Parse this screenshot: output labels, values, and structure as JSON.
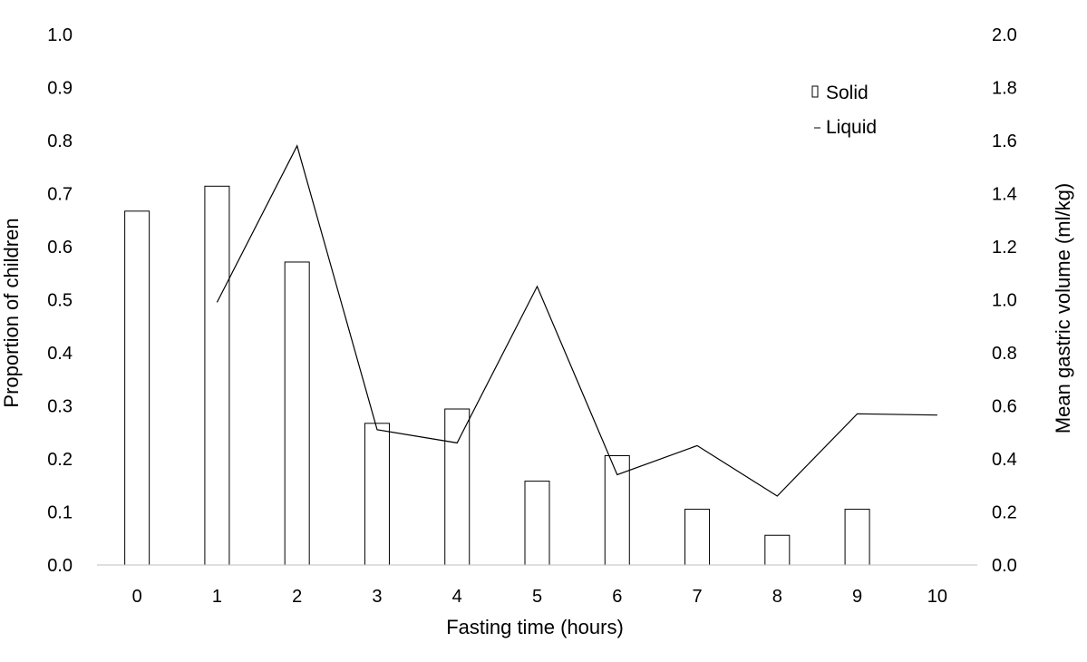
{
  "chart_data": {
    "type": "bar",
    "x": [
      0,
      1,
      2,
      3,
      4,
      5,
      6,
      7,
      8,
      9,
      10
    ],
    "x_tick_labels": [
      "0",
      "1",
      "2",
      "3",
      "4",
      "5",
      "6",
      "7",
      "8",
      "9",
      "10"
    ],
    "xlabel": "Fasting time (hours)",
    "ylabel": "Proportion of children",
    "y2label": "Mean gastric volume (ml/kg)",
    "ylim": [
      0,
      1.0
    ],
    "y2lim": [
      0,
      2.0
    ],
    "y_tick_labels": [
      "0.0",
      "0.1",
      "0.2",
      "0.3",
      "0.4",
      "0.5",
      "0.6",
      "0.7",
      "0.8",
      "0.9",
      "1.0"
    ],
    "y2_tick_labels": [
      "0.0",
      "0.2",
      "0.4",
      "0.6",
      "0.8",
      "1.0",
      "1.2",
      "1.4",
      "1.6",
      "1.8",
      "2.0"
    ],
    "grid": false,
    "legend_position": "top-right",
    "series": [
      {
        "name": "Solid",
        "kind": "bar",
        "axis": "left",
        "values": [
          0.667,
          0.714,
          0.571,
          0.267,
          0.294,
          0.158,
          0.206,
          0.105,
          0.056,
          0.105,
          null
        ]
      },
      {
        "name": "Liquid",
        "kind": "line",
        "axis": "right",
        "values": [
          null,
          0.99,
          1.58,
          0.51,
          0.46,
          1.05,
          0.34,
          0.45,
          0.26,
          0.57,
          0.565
        ]
      }
    ]
  }
}
